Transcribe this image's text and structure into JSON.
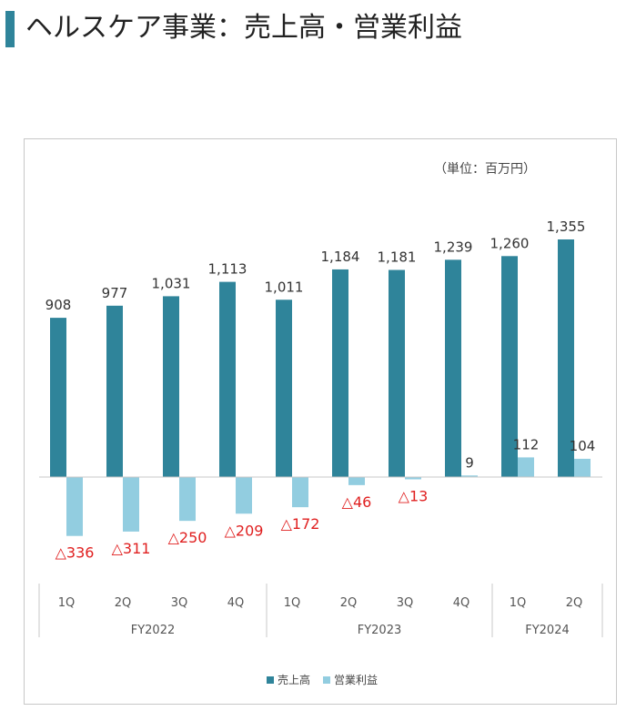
{
  "page_title": "ヘルスケア事業：売上高・営業利益",
  "colors": {
    "accent": "#2f849a",
    "sales": "#2f849a",
    "profit": "#92cde0",
    "negative_label": "#e02020"
  },
  "chart_data": {
    "type": "bar",
    "unit_note": "（単位：百万円）",
    "quarters": [
      "1Q",
      "2Q",
      "3Q",
      "4Q",
      "1Q",
      "2Q",
      "3Q",
      "4Q",
      "1Q",
      "2Q"
    ],
    "groups": [
      {
        "label": "FY2022",
        "count": 4
      },
      {
        "label": "FY2023",
        "count": 4
      },
      {
        "label": "FY2024",
        "count": 2
      }
    ],
    "series": [
      {
        "name": "売上高",
        "values": [
          908,
          977,
          1031,
          1113,
          1011,
          1184,
          1181,
          1239,
          1260,
          1355
        ],
        "labels": [
          "908",
          "977",
          "1,031",
          "1,113",
          "1,011",
          "1,184",
          "1,181",
          "1,239",
          "1,260",
          "1,355"
        ]
      },
      {
        "name": "営業利益",
        "values": [
          -336,
          -311,
          -250,
          -209,
          -172,
          -46,
          -13,
          9,
          112,
          104
        ],
        "labels": [
          "△336",
          "△311",
          "△250",
          "△209",
          "△172",
          "△46",
          "△13",
          "9",
          "112",
          "104"
        ]
      }
    ],
    "legend_position": "bottom",
    "grid": false
  }
}
